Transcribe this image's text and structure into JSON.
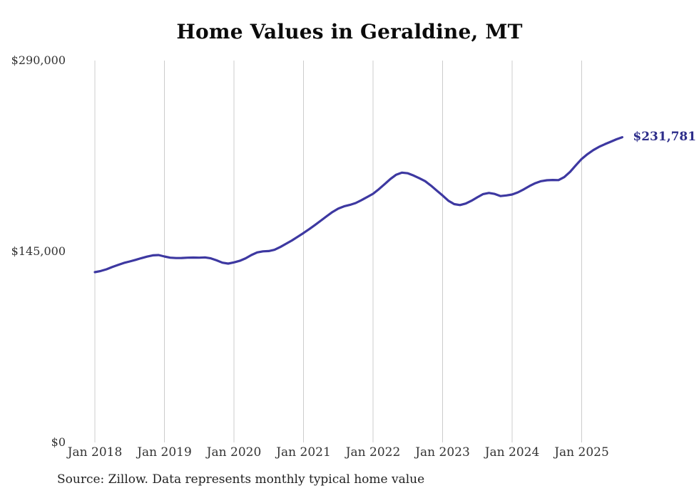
{
  "title": "Home Values in Geraldine, MT",
  "source_note": "Source: Zillow. Data represents monthly typical home value",
  "end_label": "$231,781",
  "colors": {
    "line": "#3d38a1",
    "end_label": "#2d2d8a",
    "gridline": "#cccccc",
    "axis_text": "#333333",
    "title_text": "#0b0b0b",
    "source_text": "#222222",
    "background": "#ffffff"
  },
  "chart_data": {
    "type": "line",
    "title": "Home Values in Geraldine, MT",
    "xlabel": "",
    "ylabel": "",
    "unit": "USD",
    "frequency": "monthly",
    "x_start": "2018-01",
    "x_end": "2025-08",
    "ylim": [
      0,
      290000
    ],
    "grid": "vertical-only",
    "legend": "none",
    "y_ticks": [
      {
        "label": "$290,000",
        "value": 290000
      },
      {
        "label": "$145,000",
        "value": 145000
      },
      {
        "label": "$0",
        "value": 0
      }
    ],
    "x_ticks": [
      {
        "label": "Jan 2018"
      },
      {
        "label": "Jan 2019"
      },
      {
        "label": "Jan 2020"
      },
      {
        "label": "Jan 2021"
      },
      {
        "label": "Jan 2022"
      },
      {
        "label": "Jan 2023"
      },
      {
        "label": "Jan 2024"
      },
      {
        "label": "Jan 2025"
      }
    ],
    "last_value_label": "$231,781",
    "series": [
      {
        "name": "Typical home value",
        "color": "#3d38a1",
        "values": [
          129300,
          130200,
          131500,
          133200,
          134800,
          136300,
          137400,
          138600,
          139900,
          141100,
          142100,
          142300,
          141200,
          140300,
          140000,
          140100,
          140300,
          140400,
          140300,
          140500,
          139800,
          138300,
          136500,
          135800,
          136700,
          137900,
          139800,
          142300,
          144300,
          145100,
          145300,
          146300,
          148400,
          150900,
          153400,
          156200,
          159000,
          162000,
          165200,
          168500,
          171800,
          175000,
          177600,
          179300,
          180400,
          181800,
          184000,
          186400,
          188800,
          192300,
          196200,
          200100,
          203300,
          204900,
          204400,
          202700,
          200600,
          198400,
          195000,
          191200,
          187500,
          183600,
          181000,
          180300,
          181400,
          183600,
          186200,
          188600,
          189500,
          188700,
          187100,
          187600,
          188300,
          189900,
          192200,
          194700,
          196900,
          198400,
          199100,
          199300,
          199200,
          201500,
          205500,
          210500,
          215300,
          218900,
          222000,
          224500,
          226500,
          228300,
          230200,
          231781
        ]
      }
    ]
  }
}
